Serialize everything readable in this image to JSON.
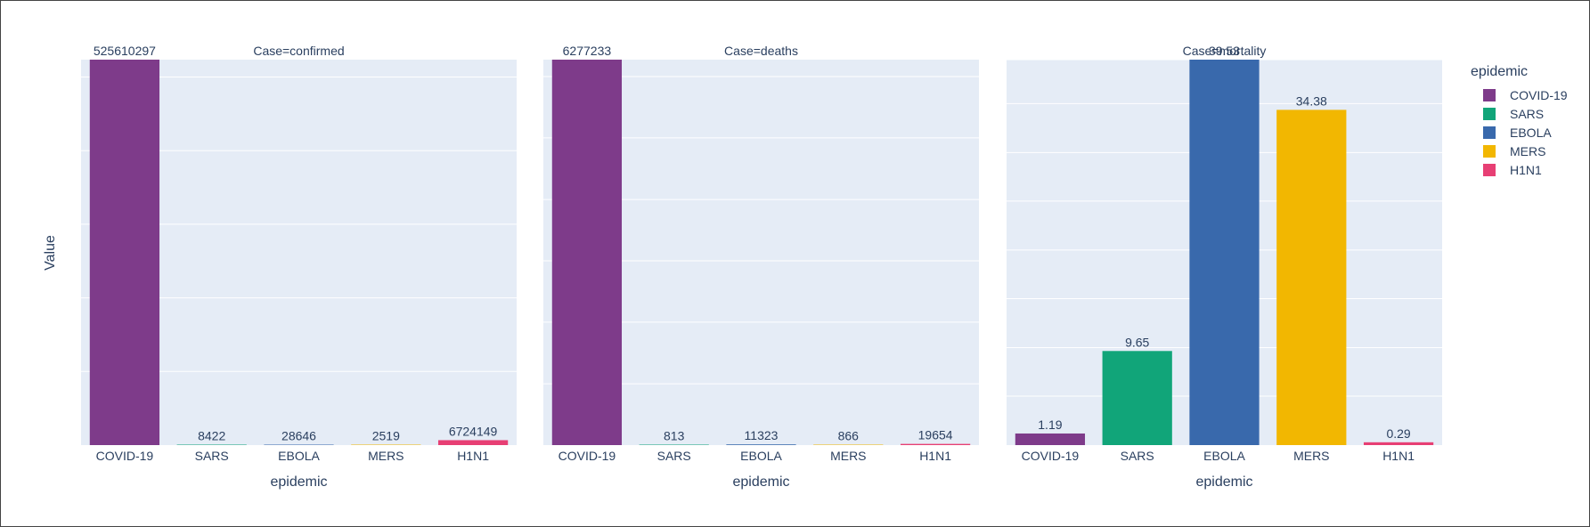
{
  "chart_data": {
    "type": "bar",
    "ylabel": "Value",
    "xlabel": "epidemic",
    "categories": [
      "COVID-19",
      "SARS",
      "EBOLA",
      "MERS",
      "H1N1"
    ],
    "colors": {
      "COVID-19": "#7e3b8a",
      "SARS": "#11a579",
      "EBOLA": "#3969ac",
      "MERS": "#f2b701",
      "H1N1": "#e73f74"
    },
    "legend": {
      "title": "epidemic",
      "position": "right",
      "entries": [
        "COVID-19",
        "SARS",
        "EBOLA",
        "MERS",
        "H1N1"
      ]
    },
    "grid": true,
    "facets": [
      {
        "title": "Case=confirmed",
        "values": [
          525610297,
          8422,
          28646,
          2519,
          6724149
        ],
        "labels": [
          "525610297",
          "8422",
          "28646",
          "2519",
          "6724149"
        ],
        "ylim": [
          0,
          525610297
        ],
        "gridlines": [
          0.191,
          0.382,
          0.573,
          0.764,
          0.955
        ]
      },
      {
        "title": "Case=deaths",
        "values": [
          6277233,
          813,
          11323,
          866,
          19654
        ],
        "labels": [
          "6277233",
          "813",
          "11323",
          "866",
          "19654"
        ],
        "ylim": [
          0,
          6277233
        ],
        "gridlines": [
          0.159,
          0.319,
          0.478,
          0.637,
          0.797,
          0.956
        ]
      },
      {
        "title": "Case=mortality",
        "values": [
          1.19,
          9.65,
          39.53,
          34.38,
          0.29
        ],
        "labels": [
          "1.19",
          "9.65",
          "39.53",
          "34.38",
          "0.29"
        ],
        "ylim": [
          0,
          39.53
        ],
        "gridlines": [
          0.127,
          0.253,
          0.38,
          0.506,
          0.633,
          0.759,
          0.886,
          1.0
        ]
      }
    ]
  }
}
